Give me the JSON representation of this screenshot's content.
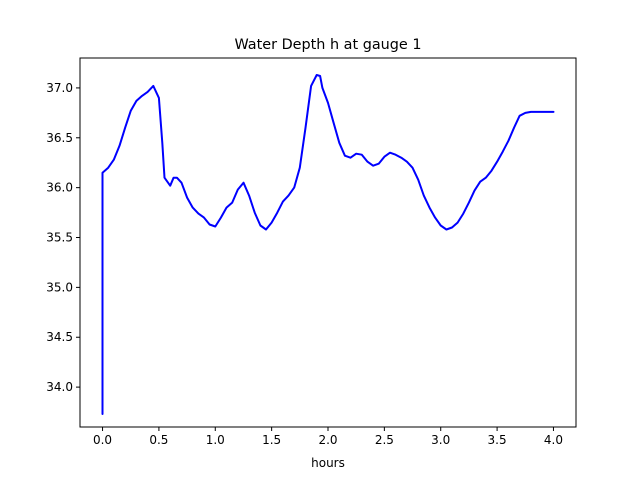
{
  "chart_data": {
    "type": "line",
    "title": "Water Depth h at gauge 1",
    "xlabel": "hours",
    "ylabel": "",
    "xlim": [
      -0.2,
      4.2
    ],
    "ylim": [
      33.6,
      37.3
    ],
    "xticks": [
      0.0,
      0.5,
      1.0,
      1.5,
      2.0,
      2.5,
      3.0,
      3.5,
      4.0
    ],
    "xtick_labels": [
      "0.0",
      "0.5",
      "1.0",
      "1.5",
      "2.0",
      "2.5",
      "3.0",
      "3.5",
      "4.0"
    ],
    "yticks": [
      34.0,
      34.5,
      35.0,
      35.5,
      36.0,
      36.5,
      37.0
    ],
    "ytick_labels": [
      "34.0",
      "34.5",
      "35.0",
      "35.5",
      "36.0",
      "36.5",
      "37.0"
    ],
    "grid": false,
    "series": [
      {
        "color": "#0000ff",
        "x": [
          0.0,
          0.0,
          0.05,
          0.1,
          0.15,
          0.2,
          0.25,
          0.3,
          0.35,
          0.4,
          0.45,
          0.5,
          0.53,
          0.55,
          0.6,
          0.63,
          0.66,
          0.7,
          0.75,
          0.8,
          0.85,
          0.9,
          0.95,
          1.0,
          1.05,
          1.1,
          1.15,
          1.2,
          1.25,
          1.3,
          1.35,
          1.4,
          1.45,
          1.5,
          1.55,
          1.6,
          1.65,
          1.7,
          1.75,
          1.8,
          1.85,
          1.9,
          1.93,
          1.95,
          2.0,
          2.05,
          2.1,
          2.15,
          2.2,
          2.25,
          2.3,
          2.35,
          2.4,
          2.45,
          2.5,
          2.55,
          2.6,
          2.65,
          2.7,
          2.75,
          2.8,
          2.85,
          2.9,
          2.95,
          3.0,
          3.05,
          3.1,
          3.15,
          3.2,
          3.25,
          3.3,
          3.35,
          3.4,
          3.45,
          3.5,
          3.55,
          3.6,
          3.65,
          3.7,
          3.75,
          3.8,
          3.85,
          3.9,
          3.95,
          4.0
        ],
        "y": [
          33.73,
          36.15,
          36.2,
          36.28,
          36.42,
          36.6,
          36.77,
          36.87,
          36.92,
          36.96,
          37.02,
          36.9,
          36.45,
          36.1,
          36.02,
          36.1,
          36.1,
          36.05,
          35.9,
          35.8,
          35.74,
          35.7,
          35.63,
          35.61,
          35.7,
          35.8,
          35.85,
          35.98,
          36.05,
          35.92,
          35.75,
          35.62,
          35.58,
          35.65,
          35.75,
          35.86,
          35.92,
          36.0,
          36.2,
          36.6,
          37.02,
          37.13,
          37.12,
          37.0,
          36.85,
          36.65,
          36.45,
          36.32,
          36.3,
          36.34,
          36.33,
          36.26,
          36.22,
          36.24,
          36.31,
          36.35,
          36.33,
          36.3,
          36.26,
          36.2,
          36.08,
          35.92,
          35.8,
          35.7,
          35.62,
          35.58,
          35.6,
          35.65,
          35.74,
          35.85,
          35.97,
          36.06,
          36.1,
          36.17,
          36.26,
          36.36,
          36.47,
          36.6,
          36.72,
          36.75,
          36.76,
          36.76,
          36.76,
          36.76,
          36.76
        ]
      }
    ]
  }
}
